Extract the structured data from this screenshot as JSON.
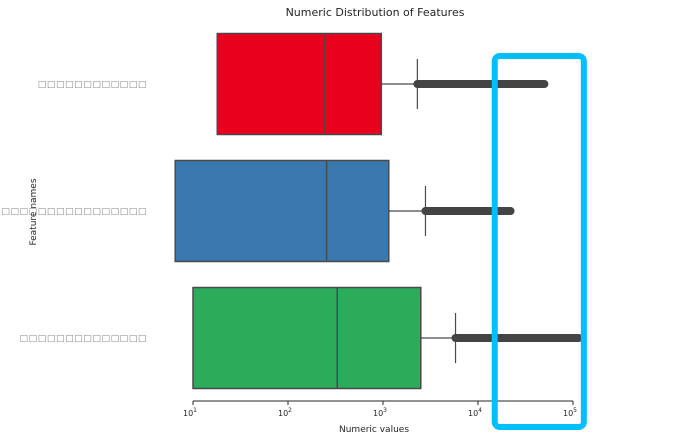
{
  "chart_data": {
    "type": "boxplot",
    "orientation": "horizontal",
    "title": "Numeric Distribution of Features",
    "xlabel": "Numeric values",
    "ylabel": "Feature names",
    "xscale": "log",
    "xlim": [
      10,
      100000
    ],
    "xticks": [
      {
        "value": 10,
        "base": "10",
        "exp": "1"
      },
      {
        "value": 100,
        "base": "10",
        "exp": "2"
      },
      {
        "value": 1000,
        "base": "10",
        "exp": "3"
      },
      {
        "value": 10000,
        "base": "10",
        "exp": "4"
      },
      {
        "value": 100000,
        "base": "10",
        "exp": "5"
      }
    ],
    "grid": false,
    "categories": [
      "□□□□□□□□□□□□",
      "□□□□□□□□□□□□□□□□",
      "□□□□□□□□□□□□□□"
    ],
    "boxes": [
      {
        "q1": 18,
        "median": 240,
        "q3": 960,
        "whisker_low": 18,
        "whisker_high": 2300,
        "outlier_min": 2300,
        "outlier_max": 50000,
        "color": "#e8001c"
      },
      {
        "q1": 6.5,
        "median": 255,
        "q3": 1150,
        "whisker_low": 6.5,
        "whisker_high": 2800,
        "outlier_min": 2800,
        "outlier_max": 22000,
        "color": "#3a78ad"
      },
      {
        "q1": 10,
        "median": 330,
        "q3": 2500,
        "whisker_low": 10,
        "whisker_high": 5800,
        "outlier_min": 5800,
        "outlier_max": 115000,
        "color": "#2aac5a"
      }
    ],
    "annotation": {
      "type": "highlight-rectangle",
      "from": 15000,
      "to": 130000,
      "color": "#00bfff"
    }
  }
}
